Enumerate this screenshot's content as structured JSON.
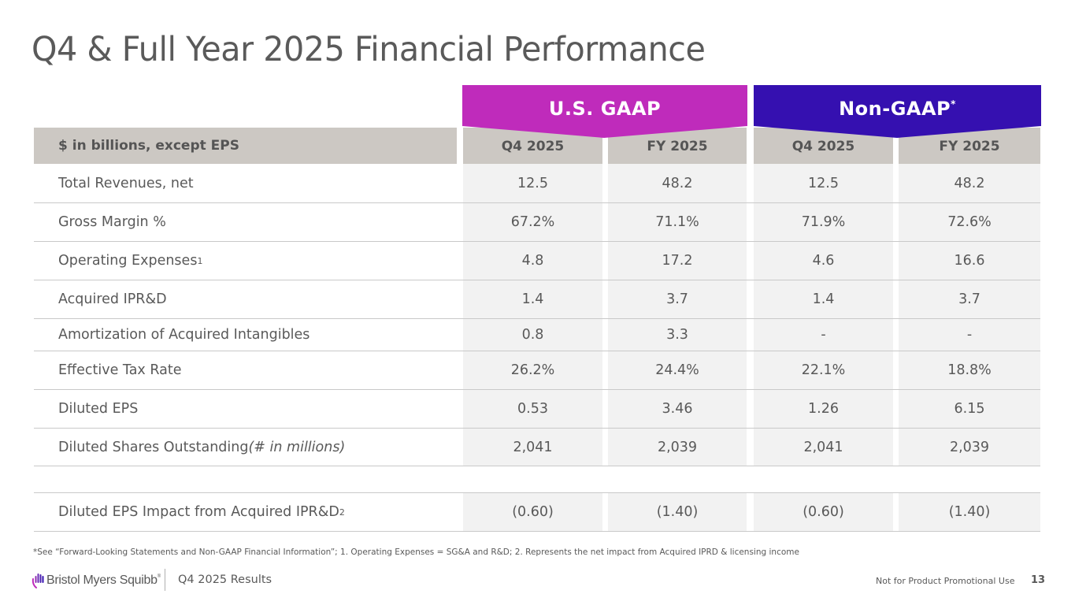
{
  "title": "Q4 & Full Year 2025 Financial Performance",
  "colors": {
    "gaap_banner": "#bf2bbb",
    "nongaap_banner": "#3510b0",
    "header_bg": "#ccc8c3",
    "cell_bg": "#f2f2f2",
    "text": "#595959"
  },
  "banners": {
    "gaap": "U.S. GAAP",
    "nongaap": "Non-GAAP",
    "nongaap_marker": "*"
  },
  "table": {
    "header_label": "$ in billions, except EPS",
    "columns": [
      "Q4 2025",
      "FY 2025",
      "Q4 2025",
      "FY 2025"
    ],
    "rows": [
      {
        "label": "Total Revenues, net",
        "sup": "",
        "note": "",
        "values": [
          "12.5",
          "48.2",
          "12.5",
          "48.2"
        ]
      },
      {
        "label": "Gross Margin %",
        "sup": "",
        "note": "",
        "values": [
          "67.2%",
          "71.1%",
          "71.9%",
          "72.6%"
        ]
      },
      {
        "label": "Operating Expenses",
        "sup": "1",
        "note": "",
        "values": [
          "4.8",
          "17.2",
          "4.6",
          "16.6"
        ]
      },
      {
        "label": "Acquired IPR&D",
        "sup": "",
        "note": "",
        "values": [
          "1.4",
          "3.7",
          "1.4",
          "3.7"
        ]
      },
      {
        "label": "Amortization of Acquired Intangibles",
        "sup": "",
        "note": "",
        "values": [
          "0.8",
          "3.3",
          "-",
          "-"
        ]
      },
      {
        "label": "Effective Tax Rate",
        "sup": "",
        "note": "",
        "values": [
          "26.2%",
          "24.4%",
          "22.1%",
          "18.8%"
        ]
      },
      {
        "label": "Diluted EPS",
        "sup": "",
        "note": "",
        "values": [
          "0.53",
          "3.46",
          "1.26",
          "6.15"
        ]
      },
      {
        "label": "Diluted Shares Outstanding ",
        "sup": "",
        "note": "(# in millions)",
        "values": [
          "2,041",
          "2,039",
          "2,041",
          "2,039"
        ]
      }
    ],
    "impact_row": {
      "label": "Diluted EPS Impact from Acquired IPR&D",
      "sup": "2",
      "values": [
        "(0.60)",
        "(1.40)",
        "(0.60)",
        "(1.40)"
      ]
    }
  },
  "footnote": "*See “Forward-Looking Statements and Non-GAAP Financial Information”; 1. Operating Expenses = SG&A and R&D; 2. Represents the net impact from Acquired IPRD & licensing income",
  "footer": {
    "logo_text": "Bristol Myers Squibb",
    "logo_mark": "®",
    "logo_icon": "hand-icon",
    "deck": "Q4 2025 Results",
    "disclaimer": "Not for Product Promotional Use",
    "page": "13"
  }
}
